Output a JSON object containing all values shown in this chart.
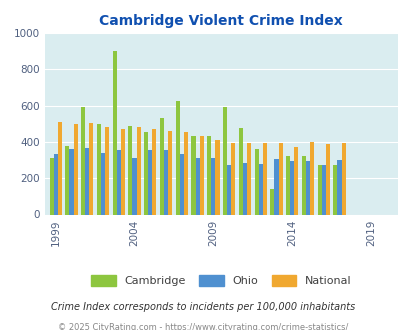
{
  "title": "Cambridge Violent Crime Index",
  "subtitle": "Crime Index corresponds to incidents per 100,000 inhabitants",
  "footer": "© 2025 CityRating.com - https://www.cityrating.com/crime-statistics/",
  "years": [
    1999,
    2000,
    2001,
    2002,
    2003,
    2004,
    2005,
    2006,
    2007,
    2008,
    2009,
    2010,
    2011,
    2012,
    2013,
    2014,
    2015,
    2016,
    2017,
    2018,
    2019,
    2020
  ],
  "cambridge": [
    310,
    375,
    590,
    500,
    900,
    490,
    455,
    530,
    625,
    430,
    430,
    590,
    475,
    360,
    140,
    320,
    320,
    275,
    275,
    0,
    0,
    0
  ],
  "ohio": [
    335,
    360,
    365,
    340,
    355,
    310,
    355,
    355,
    335,
    310,
    310,
    275,
    285,
    280,
    305,
    295,
    295,
    275,
    300,
    0,
    0,
    0
  ],
  "national": [
    510,
    500,
    505,
    480,
    470,
    480,
    470,
    460,
    455,
    435,
    410,
    395,
    395,
    395,
    395,
    370,
    400,
    390,
    395,
    0,
    0,
    0
  ],
  "xtick_labels": [
    "1999",
    "2004",
    "2009",
    "2014",
    "2019"
  ],
  "xtick_positions": [
    1999,
    2004,
    2009,
    2014,
    2019
  ],
  "cambridge_color": "#8dc63f",
  "ohio_color": "#4f90d0",
  "national_color": "#f0a830",
  "bg_color": "#daedf0",
  "plot_bg": "#daedf0",
  "title_color": "#1050b0",
  "subtitle_color": "#333333",
  "footer_color": "#888888",
  "ylim": [
    0,
    1000
  ],
  "yticks": [
    0,
    200,
    400,
    600,
    800,
    1000
  ]
}
